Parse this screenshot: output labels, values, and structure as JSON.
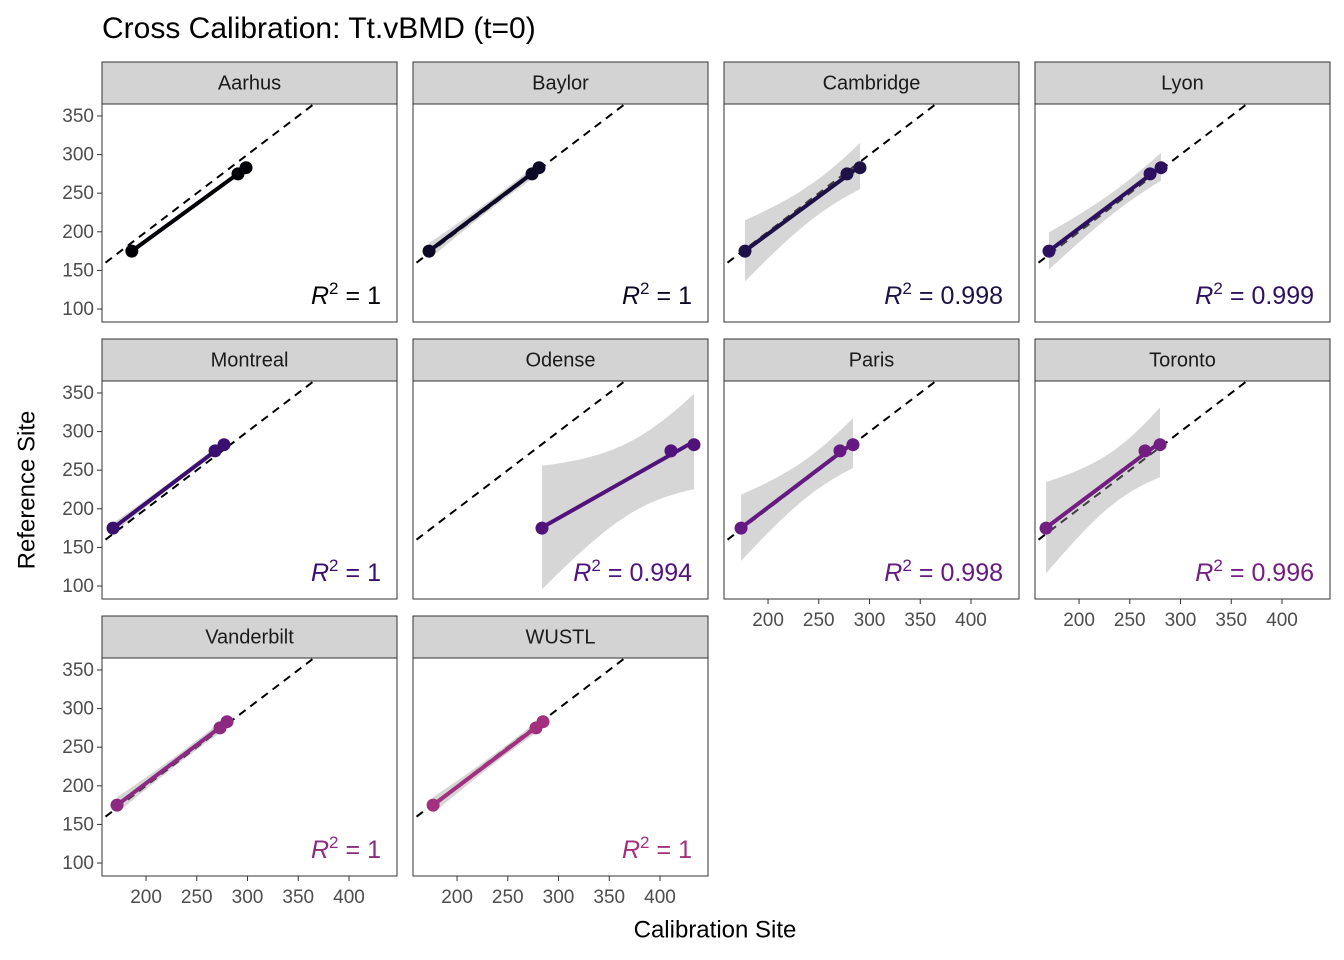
{
  "chart_data": {
    "type": "scatter",
    "title": "Cross Calibration: Tt.vBMD (t=0)",
    "xlabel": "Calibration Site",
    "ylabel": "Reference Site",
    "xlim": [
      156.6,
      447.3
    ],
    "ylim": [
      83.2,
      365.5
    ],
    "xticks": [
      200,
      250,
      300,
      350,
      400
    ],
    "yticks": [
      100,
      150,
      200,
      250,
      300,
      350
    ],
    "r2_prefix": {
      "symbol": "R",
      "power": "2",
      "sign": "="
    },
    "series": [
      {
        "name": "Aarhus",
        "color": "#000004",
        "x": [
          186,
          290.6,
          298.5
        ],
        "y": [
          175,
          275,
          283
        ],
        "r2": 1
      },
      {
        "name": "Baylor",
        "color": "#0c0926",
        "x": [
          172.4,
          273.9,
          280.8
        ],
        "y": [
          175,
          275,
          283
        ],
        "r2": 1
      },
      {
        "name": "Cambridge",
        "color": "#1d1147",
        "x": [
          177.3,
          277.8,
          290.6
        ],
        "y": [
          175,
          275,
          283
        ],
        "r2": 0.998
      },
      {
        "name": "Lyon",
        "color": "#2d1160",
        "x": [
          170.4,
          270,
          280.8
        ],
        "y": [
          175,
          275,
          283
        ],
        "r2": 0.999
      },
      {
        "name": "Montreal",
        "color": "#3b0f70",
        "x": [
          167.5,
          268,
          276.8
        ],
        "y": [
          175,
          275,
          283
        ],
        "r2": 1
      },
      {
        "name": "Odense",
        "color": "#51127c",
        "x": [
          283.7,
          410.8,
          433.5
        ],
        "y": [
          175,
          275,
          283
        ],
        "r2": 0.994
      },
      {
        "name": "Paris",
        "color": "#641a80",
        "x": [
          173.4,
          270.9,
          283.7
        ],
        "y": [
          175,
          275,
          283
        ],
        "r2": 0.998
      },
      {
        "name": "Toronto",
        "color": "#721f81",
        "x": [
          167.5,
          265,
          279.8
        ],
        "y": [
          175,
          275,
          283
        ],
        "r2": 0.996
      },
      {
        "name": "Vanderbilt",
        "color": "#8c2981",
        "x": [
          171.4,
          272.9,
          279.8
        ],
        "y": [
          175,
          275,
          283
        ],
        "r2": 1
      },
      {
        "name": "WUSTL",
        "color": "#a3307e",
        "x": [
          176.4,
          277.8,
          284.7
        ],
        "y": [
          175,
          275,
          283
        ],
        "r2": 1
      }
    ]
  }
}
